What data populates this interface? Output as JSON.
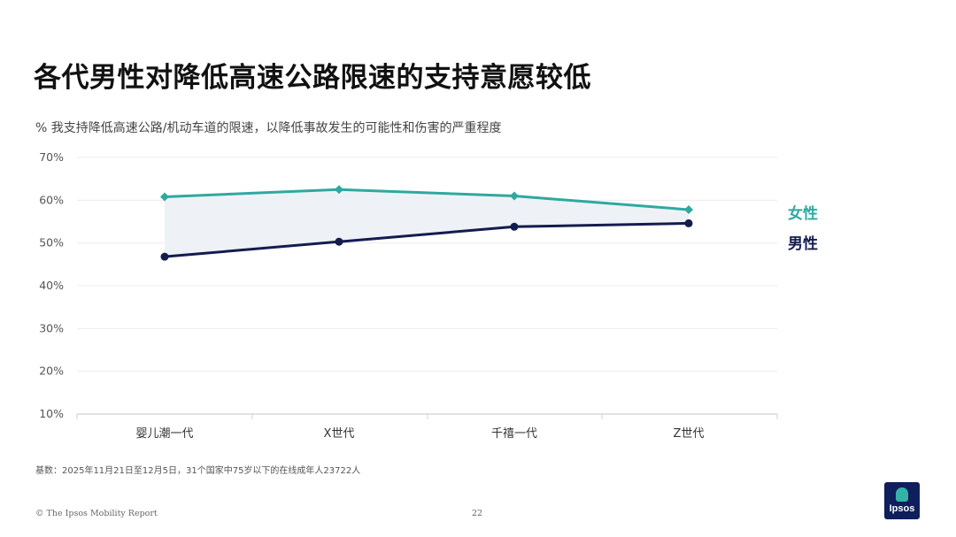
{
  "title": "各代男性对降低高速公路限速的支持意愿较低",
  "subtitle": "% 我支持降低高速公路/机动车道的限速，以降低事故发生的可能性和伤害的严重程度",
  "chart_data": {
    "type": "line",
    "categories": [
      "婴儿潮一代",
      "X世代",
      "千禧一代",
      "Z世代"
    ],
    "series": [
      {
        "name": "女性",
        "values": [
          60.8,
          62.5,
          61.0,
          57.8
        ],
        "color": "#2ea9a0",
        "marker": "diamond"
      },
      {
        "name": "男性",
        "values": [
          46.8,
          50.3,
          53.8,
          54.6
        ],
        "color": "#141c4f",
        "marker": "circle"
      }
    ],
    "ylim": [
      10,
      70
    ],
    "yticks": [
      "10%",
      "20%",
      "30%",
      "40%",
      "50%",
      "60%",
      "70%"
    ],
    "ytick_values": [
      10,
      20,
      30,
      40,
      50,
      60,
      70
    ],
    "grid": true,
    "legend_position": "right",
    "fill_between": {
      "color": "#eef2f7"
    }
  },
  "note": "基数：2025年11月21日至12月5日，31个国家中75岁以下的在线成年人23722人",
  "footer": "© The Ipsos Mobility Report",
  "page_number": "22",
  "logo": {
    "text": "Ipsos",
    "colors": {
      "background": "#0f1f5c",
      "accent": "#33b3a8"
    }
  }
}
